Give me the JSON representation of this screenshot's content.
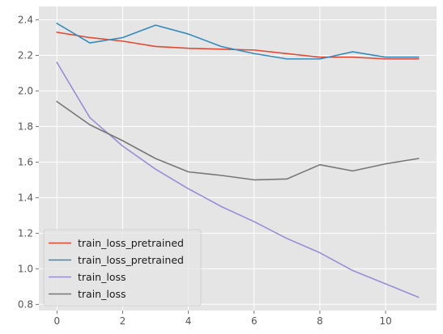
{
  "chart_data": {
    "type": "line",
    "title": "",
    "xlabel": "",
    "ylabel": "",
    "style": "ggplot",
    "grid": true,
    "legend_placement": "lower-left",
    "xlim": [
      -0.55,
      11.55
    ],
    "ylim": [
      0.765,
      2.475
    ],
    "x_ticks": [
      0,
      2,
      4,
      6,
      8,
      10
    ],
    "y_ticks": [
      0.8,
      1.0,
      1.2,
      1.4,
      1.6,
      1.8,
      2.0,
      2.2,
      2.4
    ],
    "x_tick_labels": [
      "0",
      "2",
      "4",
      "6",
      "8",
      "10"
    ],
    "y_tick_labels": [
      "0.8",
      "1.0",
      "1.2",
      "1.4",
      "1.6",
      "1.8",
      "2.0",
      "2.2",
      "2.4"
    ],
    "x": [
      0,
      1,
      2,
      3,
      4,
      5,
      6,
      7,
      8,
      9,
      10,
      11
    ],
    "series": [
      {
        "name": "train_loss_pretrained",
        "color": "#E24A33",
        "values": [
          2.33,
          2.3,
          2.28,
          2.25,
          2.24,
          2.235,
          2.23,
          2.21,
          2.19,
          2.19,
          2.18,
          2.18
        ]
      },
      {
        "name": "train_loss_pretrained",
        "color": "#348ABD",
        "values": [
          2.38,
          2.27,
          2.3,
          2.37,
          2.32,
          2.25,
          2.21,
          2.18,
          2.18,
          2.22,
          2.19,
          2.19
        ]
      },
      {
        "name": "train_loss",
        "color": "#988ED5",
        "values": [
          2.16,
          1.85,
          1.69,
          1.56,
          1.45,
          1.35,
          1.265,
          1.17,
          1.09,
          0.99,
          0.915,
          0.84
        ]
      },
      {
        "name": "train_loss",
        "color": "#777777",
        "values": [
          1.94,
          1.81,
          1.72,
          1.62,
          1.545,
          1.525,
          1.5,
          1.505,
          1.585,
          1.55,
          1.59,
          1.62
        ]
      }
    ]
  }
}
